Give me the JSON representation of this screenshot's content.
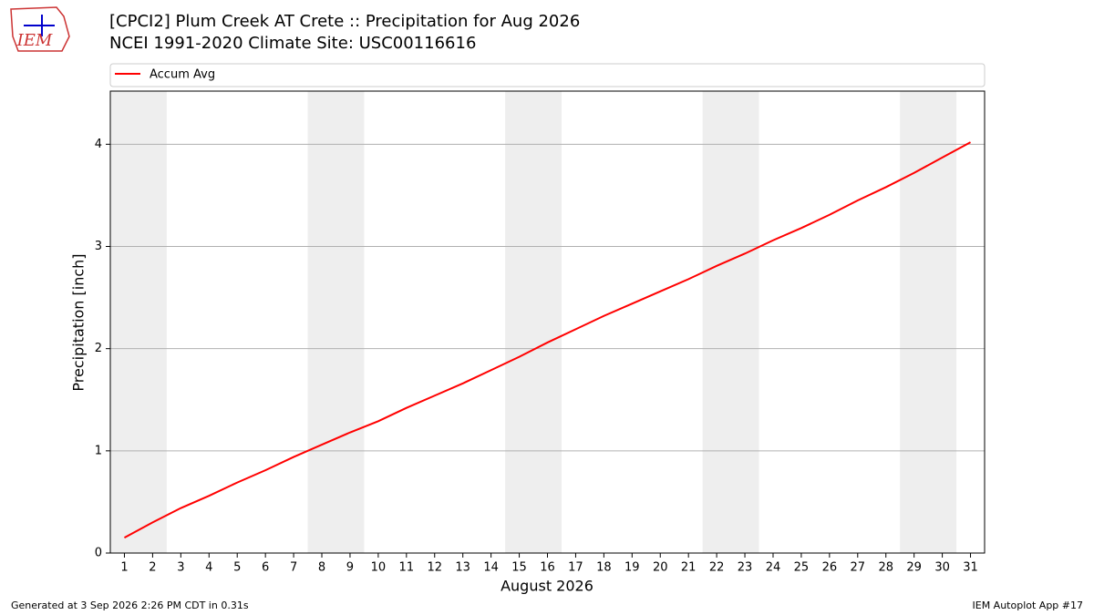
{
  "logo_text": "IEM",
  "footer": {
    "left": "Generated at 3 Sep 2026 2:26 PM CDT in 0.31s",
    "right": "IEM Autoplot App #17"
  },
  "chart_data": {
    "type": "line",
    "title": "[CPCI2] Plum Creek  AT Crete :: Precipitation for Aug 2026",
    "subtitle": "NCEI 1991-2020 Climate Site: USC00116616",
    "x_label": "August 2026",
    "y_label": "Precipitation [inch]",
    "x": [
      1,
      2,
      3,
      4,
      5,
      6,
      7,
      8,
      9,
      10,
      11,
      12,
      13,
      14,
      15,
      16,
      17,
      18,
      19,
      20,
      21,
      22,
      23,
      24,
      25,
      26,
      27,
      28,
      29,
      30,
      31
    ],
    "series": [
      {
        "name": "Accum Avg",
        "color": "#ff0000",
        "values": [
          0.15,
          0.3,
          0.44,
          0.56,
          0.69,
          0.81,
          0.94,
          1.06,
          1.18,
          1.29,
          1.42,
          1.54,
          1.66,
          1.79,
          1.92,
          2.06,
          2.19,
          2.32,
          2.44,
          2.56,
          2.68,
          2.81,
          2.93,
          3.06,
          3.18,
          3.31,
          3.45,
          3.58,
          3.72,
          3.87,
          4.02
        ]
      }
    ],
    "shaded_spans": [
      [
        0.5,
        2.5
      ],
      [
        7.5,
        9.5
      ],
      [
        14.5,
        16.5
      ],
      [
        21.5,
        23.5
      ],
      [
        28.5,
        30.5
      ]
    ],
    "shade_color": "#eeeeee",
    "xlim": [
      0.5,
      31.5
    ],
    "ylim": [
      0,
      4.52
    ],
    "xticks": [
      1,
      2,
      3,
      4,
      5,
      6,
      7,
      8,
      9,
      10,
      11,
      12,
      13,
      14,
      15,
      16,
      17,
      18,
      19,
      20,
      21,
      22,
      23,
      24,
      25,
      26,
      27,
      28,
      29,
      30,
      31
    ],
    "yticks": [
      0,
      1,
      2,
      3,
      4
    ],
    "grid": true,
    "legend": "top"
  }
}
